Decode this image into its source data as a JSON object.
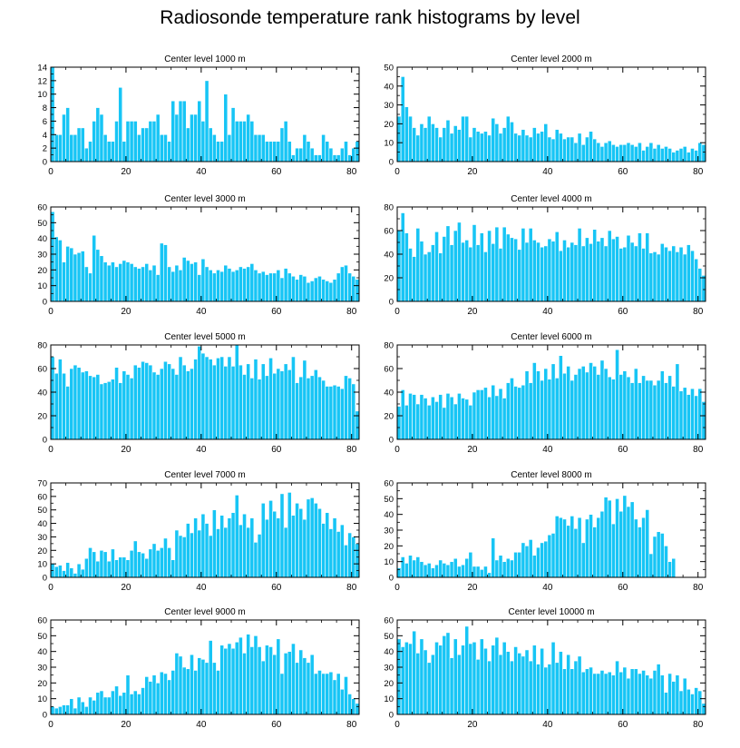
{
  "title": "Radiosonde temperature rank histograms by level",
  "colors": {
    "bar": "#17c5f5",
    "bar_edge": "#ffffff",
    "axis": "#000000"
  },
  "chart_data": [
    {
      "type": "bar",
      "title": "Center level 1000 m",
      "xlim": [
        0,
        82
      ],
      "ylim": [
        0,
        14
      ],
      "xticks": [
        0,
        20,
        40,
        60,
        80
      ],
      "yticks": [
        0,
        2,
        4,
        6,
        8,
        10,
        12,
        14
      ],
      "values": [
        14,
        4,
        4,
        7,
        8,
        4,
        4,
        5,
        5,
        2,
        3,
        6,
        8,
        7,
        4,
        3,
        3,
        6,
        11,
        3,
        6,
        6,
        6,
        4,
        5,
        5,
        6,
        6,
        7,
        4,
        4,
        3,
        9,
        7,
        9,
        9,
        5,
        7,
        7,
        9,
        6,
        12,
        5,
        4,
        3,
        3,
        10,
        4,
        8,
        6,
        6,
        6,
        7,
        6,
        4,
        4,
        4,
        3,
        3,
        3,
        3,
        5,
        6,
        3,
        1,
        2,
        2,
        4,
        3,
        2,
        1,
        1,
        4,
        3,
        2,
        1,
        1,
        2,
        3,
        1,
        2,
        3
      ]
    },
    {
      "type": "bar",
      "title": "Center level 2000 m",
      "xlim": [
        0,
        82
      ],
      "ylim": [
        0,
        50
      ],
      "xticks": [
        0,
        20,
        40,
        60,
        80
      ],
      "yticks": [
        0,
        10,
        20,
        30,
        40,
        50
      ],
      "values": [
        24,
        45,
        29,
        24,
        18,
        14,
        20,
        18,
        24,
        20,
        18,
        13,
        18,
        22,
        15,
        19,
        17,
        24,
        24,
        13,
        18,
        16,
        15,
        16,
        14,
        23,
        20,
        15,
        18,
        24,
        21,
        15,
        14,
        17,
        14,
        13,
        18,
        15,
        16,
        20,
        13,
        12,
        17,
        15,
        12,
        13,
        13,
        10,
        15,
        9,
        13,
        16,
        12,
        10,
        8,
        10,
        11,
        9,
        8,
        9,
        9,
        10,
        9,
        8,
        10,
        6,
        8,
        10,
        7,
        9,
        7,
        8,
        7,
        5,
        6,
        7,
        8,
        5,
        7,
        6,
        10,
        9
      ]
    },
    {
      "type": "bar",
      "title": "Center level 3000 m",
      "xlim": [
        0,
        82
      ],
      "ylim": [
        0,
        60
      ],
      "xticks": [
        0,
        20,
        40,
        60,
        80
      ],
      "yticks": [
        0,
        10,
        20,
        30,
        40,
        50,
        60
      ],
      "values": [
        57,
        41,
        39,
        25,
        35,
        34,
        30,
        31,
        32,
        22,
        18,
        42,
        33,
        29,
        25,
        23,
        25,
        22,
        24,
        26,
        25,
        24,
        22,
        21,
        22,
        24,
        20,
        23,
        17,
        37,
        36,
        22,
        19,
        23,
        20,
        28,
        26,
        24,
        25,
        17,
        27,
        22,
        20,
        18,
        20,
        19,
        23,
        21,
        19,
        20,
        22,
        21,
        22,
        24,
        20,
        18,
        19,
        17,
        18,
        18,
        20,
        15,
        21,
        18,
        16,
        14,
        17,
        16,
        12,
        13,
        15,
        16,
        14,
        13,
        12,
        14,
        18,
        22,
        23,
        18,
        16,
        14
      ]
    },
    {
      "type": "bar",
      "title": "Center level 4000 m",
      "xlim": [
        0,
        82
      ],
      "ylim": [
        0,
        80
      ],
      "xticks": [
        0,
        20,
        40,
        60,
        80
      ],
      "yticks": [
        0,
        20,
        40,
        60,
        80
      ],
      "values": [
        60,
        75,
        58,
        45,
        38,
        62,
        51,
        40,
        42,
        48,
        59,
        41,
        55,
        64,
        48,
        60,
        67,
        50,
        52,
        46,
        65,
        48,
        58,
        42,
        60,
        49,
        63,
        45,
        63,
        57,
        54,
        53,
        44,
        62,
        50,
        62,
        52,
        50,
        46,
        47,
        53,
        51,
        59,
        43,
        52,
        46,
        50,
        48,
        62,
        47,
        54,
        49,
        61,
        51,
        54,
        47,
        60,
        53,
        55,
        45,
        46,
        56,
        50,
        47,
        58,
        45,
        58,
        41,
        42,
        40,
        49,
        46,
        43,
        47,
        42,
        46,
        40,
        48,
        43,
        36,
        28,
        22
      ]
    },
    {
      "type": "bar",
      "title": "Center level 5000 m",
      "xlim": [
        0,
        82
      ],
      "ylim": [
        0,
        80
      ],
      "xticks": [
        0,
        20,
        40,
        60,
        80
      ],
      "yticks": [
        0,
        20,
        40,
        60,
        80
      ],
      "values": [
        70,
        56,
        68,
        56,
        45,
        60,
        63,
        61,
        57,
        58,
        54,
        53,
        55,
        47,
        48,
        49,
        51,
        61,
        48,
        58,
        55,
        52,
        63,
        61,
        66,
        65,
        63,
        57,
        55,
        60,
        66,
        64,
        60,
        55,
        70,
        63,
        58,
        60,
        68,
        79,
        73,
        70,
        68,
        63,
        69,
        70,
        62,
        70,
        62,
        80,
        63,
        55,
        64,
        52,
        68,
        51,
        64,
        54,
        69,
        56,
        60,
        58,
        64,
        59,
        70,
        48,
        53,
        67,
        52,
        54,
        59,
        53,
        50,
        45,
        45,
        46,
        45,
        43,
        54,
        52,
        47,
        24
      ]
    },
    {
      "type": "bar",
      "title": "Center level 6000 m",
      "xlim": [
        0,
        82
      ],
      "ylim": [
        0,
        80
      ],
      "xticks": [
        0,
        20,
        40,
        60,
        80
      ],
      "yticks": [
        0,
        20,
        40,
        60,
        80
      ],
      "values": [
        28,
        42,
        29,
        39,
        38,
        30,
        38,
        35,
        29,
        36,
        32,
        38,
        27,
        39,
        36,
        30,
        39,
        35,
        34,
        29,
        40,
        42,
        42,
        44,
        36,
        46,
        37,
        43,
        35,
        48,
        52,
        45,
        44,
        46,
        58,
        48,
        65,
        58,
        50,
        60,
        51,
        64,
        52,
        71,
        56,
        62,
        50,
        55,
        60,
        62,
        57,
        65,
        62,
        55,
        67,
        60,
        53,
        51,
        76,
        55,
        58,
        53,
        48,
        60,
        48,
        54,
        50,
        50,
        46,
        50,
        58,
        48,
        54,
        45,
        64,
        41,
        44,
        38,
        43,
        37,
        43,
        32
      ]
    },
    {
      "type": "bar",
      "title": "Center level 7000 m",
      "xlim": [
        0,
        82
      ],
      "ylim": [
        0,
        70
      ],
      "xticks": [
        0,
        20,
        40,
        60,
        80
      ],
      "yticks": [
        0,
        10,
        20,
        30,
        40,
        50,
        60,
        70
      ],
      "values": [
        10,
        8,
        9,
        5,
        11,
        7,
        3,
        10,
        6,
        14,
        22,
        19,
        12,
        20,
        19,
        12,
        21,
        13,
        15,
        15,
        13,
        20,
        27,
        19,
        18,
        14,
        21,
        25,
        20,
        22,
        29,
        22,
        13,
        35,
        31,
        30,
        40,
        33,
        44,
        35,
        47,
        40,
        31,
        50,
        36,
        46,
        37,
        44,
        48,
        61,
        39,
        47,
        37,
        44,
        26,
        32,
        55,
        43,
        57,
        49,
        44,
        62,
        37,
        63,
        46,
        55,
        51,
        43,
        58,
        59,
        55,
        51,
        40,
        48,
        36,
        44,
        34,
        39,
        24,
        33,
        30,
        25
      ]
    },
    {
      "type": "bar",
      "title": "Center level 8000 m",
      "xlim": [
        0,
        82
      ],
      "ylim": [
        0,
        60
      ],
      "xticks": [
        0,
        20,
        40,
        60,
        80
      ],
      "yticks": [
        0,
        10,
        20,
        30,
        40,
        50,
        60
      ],
      "values": [
        6,
        13,
        9,
        14,
        11,
        13,
        10,
        8,
        9,
        6,
        8,
        11,
        9,
        8,
        10,
        12,
        7,
        8,
        12,
        16,
        7,
        7,
        5,
        7,
        3,
        25,
        11,
        14,
        10,
        12,
        11,
        16,
        16,
        22,
        20,
        24,
        14,
        19,
        22,
        23,
        27,
        28,
        39,
        38,
        37,
        33,
        39,
        31,
        38,
        22,
        37,
        40,
        32,
        38,
        42,
        51,
        49,
        34,
        50,
        42,
        52,
        45,
        48,
        37,
        32,
        38,
        43,
        15,
        26,
        29,
        28,
        20,
        10,
        12
      ]
    },
    {
      "type": "bar",
      "title": "Center level 9000 m",
      "xlim": [
        0,
        82
      ],
      "ylim": [
        0,
        60
      ],
      "xticks": [
        0,
        20,
        40,
        60,
        80
      ],
      "yticks": [
        0,
        10,
        20,
        30,
        40,
        50,
        60
      ],
      "values": [
        5,
        4,
        5,
        6,
        6,
        10,
        4,
        11,
        8,
        5,
        11,
        9,
        14,
        15,
        11,
        11,
        15,
        18,
        12,
        14,
        25,
        13,
        15,
        13,
        17,
        24,
        21,
        25,
        20,
        27,
        26,
        22,
        28,
        39,
        37,
        30,
        29,
        38,
        28,
        36,
        35,
        33,
        47,
        33,
        28,
        44,
        42,
        45,
        42,
        46,
        49,
        39,
        51,
        43,
        50,
        43,
        34,
        44,
        43,
        38,
        48,
        26,
        39,
        40,
        45,
        33,
        41,
        36,
        33,
        38,
        26,
        28,
        26,
        26,
        27,
        22,
        26,
        16,
        24,
        13,
        10,
        7
      ]
    },
    {
      "type": "bar",
      "title": "Center level 10000 m",
      "xlim": [
        0,
        82
      ],
      "ylim": [
        0,
        60
      ],
      "xticks": [
        0,
        20,
        40,
        60,
        80
      ],
      "yticks": [
        0,
        10,
        20,
        30,
        40,
        50,
        60
      ],
      "values": [
        48,
        43,
        46,
        45,
        53,
        39,
        48,
        41,
        33,
        38,
        46,
        44,
        50,
        52,
        36,
        48,
        38,
        44,
        56,
        45,
        46,
        35,
        48,
        42,
        34,
        44,
        49,
        38,
        46,
        40,
        34,
        43,
        39,
        37,
        41,
        34,
        44,
        32,
        42,
        30,
        32,
        46,
        33,
        40,
        29,
        38,
        29,
        34,
        37,
        27,
        29,
        30,
        26,
        26,
        28,
        26,
        27,
        25,
        34,
        27,
        30,
        23,
        29,
        29,
        26,
        28,
        25,
        23,
        28,
        32,
        25,
        14,
        26,
        21,
        25,
        15,
        23,
        16,
        13,
        17,
        15,
        7
      ]
    }
  ]
}
